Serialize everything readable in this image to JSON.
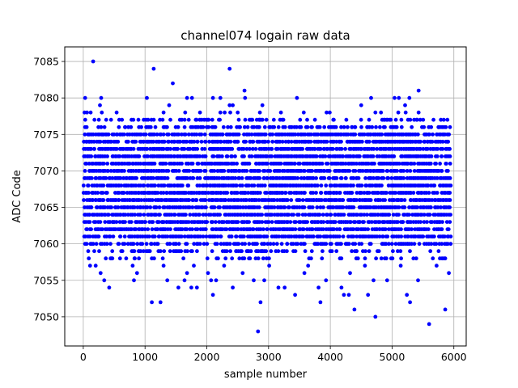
{
  "chart_data": {
    "type": "scatter",
    "title": "channel074 logain raw data",
    "xlabel": "sample number",
    "ylabel": "ADC Code",
    "xlim": [
      -300,
      6200
    ],
    "ylim": [
      7046,
      7087
    ],
    "x_ticks": [
      0,
      1000,
      2000,
      3000,
      4000,
      5000,
      6000
    ],
    "y_ticks": [
      7050,
      7055,
      7060,
      7065,
      7070,
      7075,
      7080,
      7085
    ],
    "x_tick_labels": [
      "0",
      "1000",
      "2000",
      "3000",
      "4000",
      "5000",
      "6000"
    ],
    "y_tick_labels": [
      "7050",
      "7055",
      "7060",
      "7065",
      "7070",
      "7075",
      "7080",
      "7085"
    ],
    "grid": true,
    "marker_color": "#0000ff",
    "series": [
      {
        "n_samples": 5940,
        "dense_range": [
          7060,
          7076
        ],
        "sample_step": 25,
        "points": [
          [
            160,
            7085
          ],
          [
            1140,
            7084
          ],
          [
            2370,
            7084
          ],
          [
            1450,
            7082
          ],
          [
            2610,
            7081
          ],
          [
            5430,
            7081
          ],
          [
            30,
            7080
          ],
          [
            290,
            7080
          ],
          [
            1030,
            7080
          ],
          [
            1680,
            7080
          ],
          [
            1760,
            7080
          ],
          [
            2100,
            7080
          ],
          [
            2220,
            7080
          ],
          [
            2620,
            7080
          ],
          [
            3460,
            7080
          ],
          [
            4660,
            7080
          ],
          [
            5040,
            7080
          ],
          [
            5110,
            7080
          ],
          [
            5280,
            7080
          ],
          [
            20,
            7078
          ],
          [
            60,
            7078
          ],
          [
            120,
            7078
          ],
          [
            300,
            7078
          ],
          [
            540,
            7078
          ],
          [
            1300,
            7078
          ],
          [
            1650,
            7078
          ],
          [
            1890,
            7078
          ],
          [
            2220,
            7078
          ],
          [
            2290,
            7078
          ],
          [
            2380,
            7078
          ],
          [
            2500,
            7078
          ],
          [
            2860,
            7078
          ],
          [
            3200,
            7078
          ],
          [
            3570,
            7078
          ],
          [
            3940,
            7078
          ],
          [
            3990,
            7078
          ],
          [
            4730,
            7078
          ],
          [
            4820,
            7078
          ],
          [
            5100,
            7078
          ],
          [
            5220,
            7078
          ],
          [
            5430,
            7078
          ],
          [
            270,
            7079
          ],
          [
            1390,
            7079
          ],
          [
            2370,
            7079
          ],
          [
            2420,
            7079
          ],
          [
            2900,
            7079
          ],
          [
            4500,
            7079
          ],
          [
            5210,
            7079
          ],
          [
            80,
            7059
          ],
          [
            110,
            7057
          ],
          [
            200,
            7057
          ],
          [
            280,
            7056
          ],
          [
            340,
            7055
          ],
          [
            420,
            7054
          ],
          [
            470,
            7058
          ],
          [
            800,
            7057
          ],
          [
            820,
            7055
          ],
          [
            830,
            7058
          ],
          [
            870,
            7056
          ],
          [
            900,
            7058
          ],
          [
            1110,
            7052
          ],
          [
            1250,
            7052
          ],
          [
            1300,
            7057
          ],
          [
            1360,
            7055
          ],
          [
            1540,
            7054
          ],
          [
            1640,
            7055
          ],
          [
            1680,
            7056
          ],
          [
            1750,
            7054
          ],
          [
            1790,
            7057
          ],
          [
            1840,
            7054
          ],
          [
            2020,
            7056
          ],
          [
            2070,
            7055
          ],
          [
            2100,
            7053
          ],
          [
            2150,
            7055
          ],
          [
            2280,
            7057
          ],
          [
            2420,
            7054
          ],
          [
            2580,
            7056
          ],
          [
            2700,
            7058
          ],
          [
            2760,
            7055
          ],
          [
            2830,
            7048
          ],
          [
            2870,
            7052
          ],
          [
            2930,
            7055
          ],
          [
            3010,
            7057
          ],
          [
            3160,
            7054
          ],
          [
            3260,
            7054
          ],
          [
            3430,
            7053
          ],
          [
            3580,
            7056
          ],
          [
            3640,
            7057
          ],
          [
            3810,
            7054
          ],
          [
            3840,
            7052
          ],
          [
            3930,
            7055
          ],
          [
            4180,
            7054
          ],
          [
            4220,
            7053
          ],
          [
            4300,
            7053
          ],
          [
            4320,
            7056
          ],
          [
            4390,
            7051
          ],
          [
            4560,
            7057
          ],
          [
            4610,
            7053
          ],
          [
            4700,
            7055
          ],
          [
            4730,
            7050
          ],
          [
            4920,
            7055
          ],
          [
            5140,
            7057
          ],
          [
            5240,
            7053
          ],
          [
            5290,
            7052
          ],
          [
            5420,
            7055
          ],
          [
            5600,
            7049
          ],
          [
            5660,
            7058
          ],
          [
            5720,
            7057
          ],
          [
            5860,
            7051
          ],
          [
            5920,
            7056
          ],
          [
            5840,
            7058
          ]
        ]
      }
    ]
  }
}
